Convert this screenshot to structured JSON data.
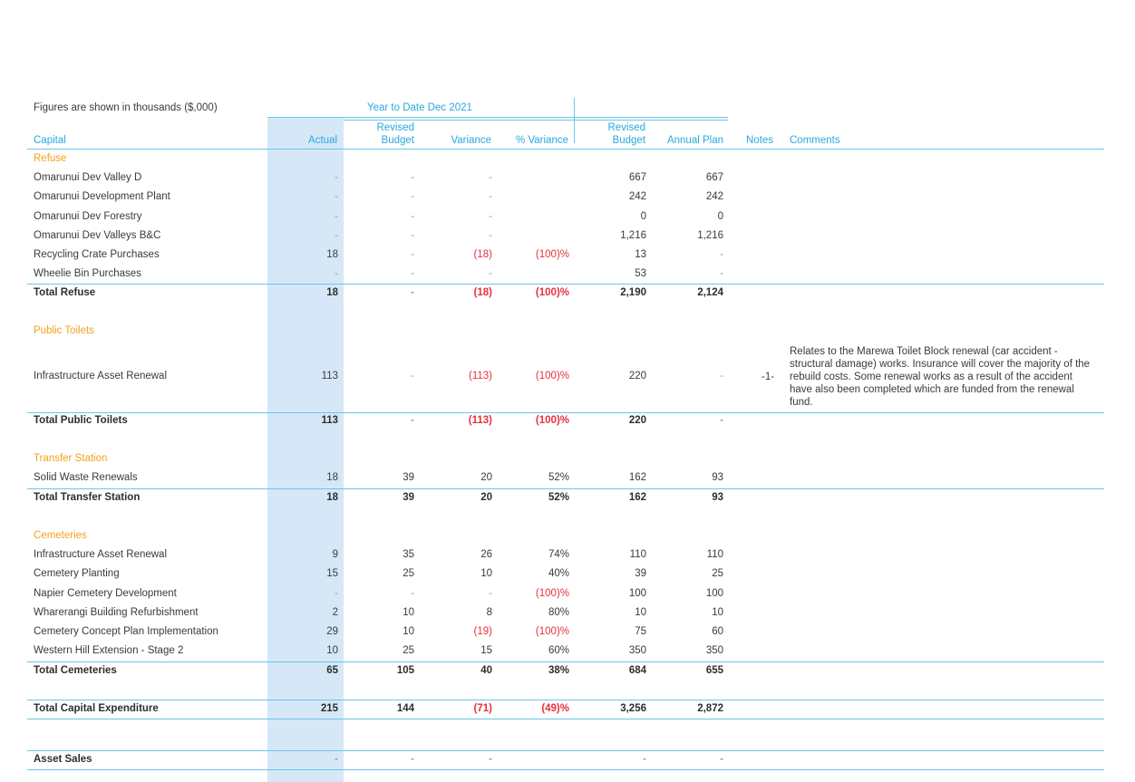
{
  "header": {
    "figures_note": "Figures are shown in thousands ($,000)",
    "period": "Year to Date Dec 2021",
    "columns": {
      "capital": "Capital",
      "actual": "Actual",
      "revised_budget": [
        "Revised",
        "Budget"
      ],
      "variance": "Variance",
      "pct_variance": "% Variance",
      "full_revised_budget": [
        "Revised",
        "Budget"
      ],
      "annual_plan": "Annual Plan",
      "notes": "Notes",
      "comments": "Comments"
    }
  },
  "sections": {
    "refuse": {
      "title": "Refuse",
      "rows": [
        {
          "label": "Omarunui Dev Valley D",
          "actual": "-",
          "rev": "-",
          "var": "-",
          "pct": "",
          "rev2": "667",
          "ann": "667"
        },
        {
          "label": "Omarunui Development Plant",
          "actual": "-",
          "rev": "-",
          "var": "-",
          "pct": "",
          "rev2": "242",
          "ann": "242"
        },
        {
          "label": "Omarunui Dev Forestry",
          "actual": "-",
          "rev": "-",
          "var": "-",
          "pct": "",
          "rev2": "0",
          "ann": "0"
        },
        {
          "label": "Omarunui Dev Valleys B&C",
          "actual": "-",
          "rev": "-",
          "var": "-",
          "pct": "",
          "rev2": "1,216",
          "ann": "1,216"
        },
        {
          "label": "Recycling Crate Purchases",
          "actual": "18",
          "rev": "-",
          "var": "(18)",
          "pct": "(100)%",
          "rev2": "13",
          "ann": "-"
        },
        {
          "label": "Wheelie Bin Purchases",
          "actual": "-",
          "rev": "-",
          "var": "-",
          "pct": "",
          "rev2": "53",
          "ann": "-"
        }
      ],
      "total": {
        "label": "Total Refuse",
        "actual": "18",
        "rev": "-",
        "var": "(18)",
        "pct": "(100)%",
        "rev2": "2,190",
        "ann": "2,124"
      }
    },
    "toilets": {
      "title": "Public Toilets",
      "rows": [
        {
          "label": "Infrastructure Asset Renewal",
          "actual": "113",
          "rev": "-",
          "var": "(113)",
          "pct": "(100)%",
          "rev2": "220",
          "ann": "-",
          "note": "-1-",
          "comment": "Relates to the Marewa Toilet Block renewal (car accident - structural damage) works. Insurance will cover the majority of the rebuild costs. Some renewal works as a result of the accident have also been completed which are funded from the renewal fund."
        }
      ],
      "total": {
        "label": "Total Public Toilets",
        "actual": "113",
        "rev": "-",
        "var": "(113)",
        "pct": "(100)%",
        "rev2": "220",
        "ann": "-"
      }
    },
    "transfer": {
      "title": "Transfer Station",
      "rows": [
        {
          "label": "Solid Waste Renewals",
          "actual": "18",
          "rev": "39",
          "var": "20",
          "pct": "52%",
          "rev2": "162",
          "ann": "93"
        }
      ],
      "total": {
        "label": "Total Transfer Station",
        "actual": "18",
        "rev": "39",
        "var": "20",
        "pct": "52%",
        "rev2": "162",
        "ann": "93"
      }
    },
    "cemeteries": {
      "title": "Cemeteries",
      "rows": [
        {
          "label": "Infrastructure Asset Renewal",
          "actual": "9",
          "rev": "35",
          "var": "26",
          "pct": "74%",
          "rev2": "110",
          "ann": "110"
        },
        {
          "label": "Cemetery Planting",
          "actual": "15",
          "rev": "25",
          "var": "10",
          "pct": "40%",
          "rev2": "39",
          "ann": "25"
        },
        {
          "label": "Napier Cemetery Development",
          "actual": "-",
          "rev": "-",
          "var": "-",
          "pct": "(100)%",
          "rev2": "100",
          "ann": "100"
        },
        {
          "label": "Wharerangi Building Refurbishment",
          "actual": "2",
          "rev": "10",
          "var": "8",
          "pct": "80%",
          "rev2": "10",
          "ann": "10"
        },
        {
          "label": "Cemetery Concept Plan Implementation",
          "actual": "29",
          "rev": "10",
          "var": "(19)",
          "pct": "(100)%",
          "rev2": "75",
          "ann": "60"
        },
        {
          "label": "Western Hill Extension - Stage 2",
          "actual": "10",
          "rev": "25",
          "var": "15",
          "pct": "60%",
          "rev2": "350",
          "ann": "350"
        }
      ],
      "total": {
        "label": "Total Cemeteries",
        "actual": "65",
        "rev": "105",
        "var": "40",
        "pct": "38%",
        "rev2": "684",
        "ann": "655"
      }
    }
  },
  "grand_total": {
    "label": "Total Capital Expenditure",
    "actual": "215",
    "rev": "144",
    "var": "(71)",
    "pct": "(49)%",
    "rev2": "3,256",
    "ann": "2,872"
  },
  "asset_sales": {
    "label": "Asset Sales",
    "actual": "-",
    "rev": "-",
    "var": "-",
    "pct": "",
    "rev2": "-",
    "ann": "-"
  },
  "colors": {
    "accent": "#29a8df",
    "section": "#f4a21a",
    "negative": "#e8303c",
    "actual_band": "#d6e8f7"
  }
}
